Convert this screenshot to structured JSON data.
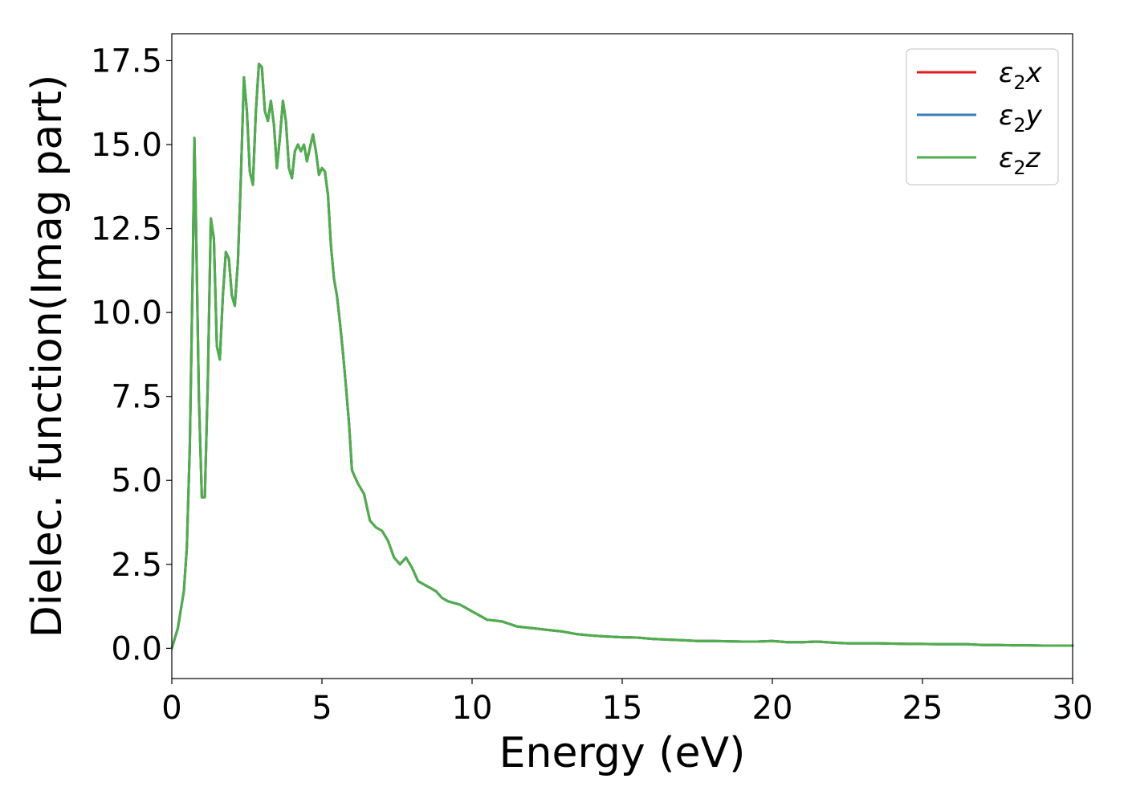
{
  "chart_data": {
    "type": "line",
    "title": "",
    "xlabel": "Energy (eV)",
    "ylabel": "Dielec. function(Imag part)",
    "xlim": [
      0,
      30
    ],
    "ylim": [
      -0.9,
      18.3
    ],
    "xticks": [
      0,
      5,
      10,
      15,
      20,
      25,
      30
    ],
    "xtick_labels": [
      "0",
      "5",
      "10",
      "15",
      "20",
      "25",
      "30"
    ],
    "yticks": [
      0,
      2.5,
      5,
      7.5,
      10,
      12.5,
      15,
      17.5
    ],
    "ytick_labels": [
      "0.0",
      "2.5",
      "5.0",
      "7.5",
      "10.0",
      "12.5",
      "15.0",
      "17.5"
    ],
    "grid": false,
    "legend_position": "top-right",
    "x": [
      0,
      0.2,
      0.4,
      0.5,
      0.6,
      0.7,
      0.75,
      0.8,
      0.9,
      1.0,
      1.1,
      1.2,
      1.3,
      1.4,
      1.5,
      1.6,
      1.7,
      1.8,
      1.9,
      2.0,
      2.1,
      2.2,
      2.3,
      2.4,
      2.5,
      2.6,
      2.7,
      2.8,
      2.9,
      3.0,
      3.1,
      3.2,
      3.3,
      3.4,
      3.5,
      3.6,
      3.7,
      3.8,
      3.9,
      4.0,
      4.1,
      4.2,
      4.3,
      4.4,
      4.5,
      4.6,
      4.7,
      4.8,
      4.9,
      5.0,
      5.1,
      5.2,
      5.3,
      5.4,
      5.5,
      5.6,
      5.7,
      5.8,
      5.9,
      6.0,
      6.2,
      6.4,
      6.6,
      6.8,
      7.0,
      7.2,
      7.4,
      7.6,
      7.8,
      8.0,
      8.2,
      8.4,
      8.6,
      8.8,
      9.0,
      9.2,
      9.4,
      9.6,
      9.8,
      10.0,
      10.2,
      10.5,
      11.0,
      11.5,
      12.0,
      12.5,
      13.0,
      13.5,
      14.0,
      14.5,
      15.0,
      15.5,
      16.0,
      16.5,
      17.0,
      17.5,
      18.0,
      18.5,
      19.0,
      19.5,
      20.0,
      20.5,
      21.0,
      21.5,
      22.0,
      22.5,
      23.0,
      23.5,
      24.0,
      24.5,
      25.0,
      25.5,
      26.0,
      26.5,
      27.0,
      27.5,
      28.0,
      28.5,
      29.0,
      29.5,
      30.0
    ],
    "series": [
      {
        "name": "ε2x",
        "color": "#e41a1c",
        "values": [
          0,
          0.6,
          1.7,
          3.0,
          6.0,
          11.5,
          15.2,
          13.0,
          7.5,
          4.5,
          4.5,
          8.0,
          12.8,
          12.2,
          9.0,
          8.6,
          10.5,
          11.8,
          11.6,
          10.5,
          10.2,
          11.5,
          14.0,
          17.0,
          16.0,
          14.2,
          13.8,
          16.0,
          17.4,
          17.3,
          16.0,
          15.7,
          16.3,
          15.6,
          14.3,
          15.2,
          16.3,
          15.7,
          14.3,
          14.0,
          14.8,
          15.0,
          14.8,
          15.0,
          14.5,
          14.9,
          15.3,
          14.8,
          14.1,
          14.3,
          14.2,
          13.5,
          12.0,
          11.0,
          10.5,
          9.7,
          8.8,
          7.8,
          6.7,
          5.3,
          4.9,
          4.6,
          3.8,
          3.6,
          3.5,
          3.2,
          2.7,
          2.5,
          2.7,
          2.4,
          2.0,
          1.9,
          1.8,
          1.7,
          1.5,
          1.4,
          1.35,
          1.3,
          1.2,
          1.1,
          1.0,
          0.85,
          0.8,
          0.65,
          0.6,
          0.55,
          0.5,
          0.42,
          0.38,
          0.35,
          0.33,
          0.32,
          0.28,
          0.26,
          0.24,
          0.22,
          0.22,
          0.21,
          0.2,
          0.2,
          0.22,
          0.18,
          0.18,
          0.2,
          0.17,
          0.15,
          0.15,
          0.15,
          0.14,
          0.13,
          0.13,
          0.12,
          0.12,
          0.12,
          0.1,
          0.1,
          0.09,
          0.09,
          0.08,
          0.08,
          0.08
        ]
      },
      {
        "name": "ε2y",
        "color": "#377eb8",
        "values": [
          0,
          0.6,
          1.7,
          3.0,
          6.0,
          11.5,
          15.2,
          13.0,
          7.5,
          4.5,
          4.5,
          8.0,
          12.8,
          12.2,
          9.0,
          8.6,
          10.5,
          11.8,
          11.6,
          10.5,
          10.2,
          11.5,
          14.0,
          17.0,
          16.0,
          14.2,
          13.8,
          16.0,
          17.4,
          17.3,
          16.0,
          15.7,
          16.3,
          15.6,
          14.3,
          15.2,
          16.3,
          15.7,
          14.3,
          14.0,
          14.8,
          15.0,
          14.8,
          15.0,
          14.5,
          14.9,
          15.3,
          14.8,
          14.1,
          14.3,
          14.2,
          13.5,
          12.0,
          11.0,
          10.5,
          9.7,
          8.8,
          7.8,
          6.7,
          5.3,
          4.9,
          4.6,
          3.8,
          3.6,
          3.5,
          3.2,
          2.7,
          2.5,
          2.7,
          2.4,
          2.0,
          1.9,
          1.8,
          1.7,
          1.5,
          1.4,
          1.35,
          1.3,
          1.2,
          1.1,
          1.0,
          0.85,
          0.8,
          0.65,
          0.6,
          0.55,
          0.5,
          0.42,
          0.38,
          0.35,
          0.33,
          0.32,
          0.28,
          0.26,
          0.24,
          0.22,
          0.22,
          0.21,
          0.2,
          0.2,
          0.22,
          0.18,
          0.18,
          0.2,
          0.17,
          0.15,
          0.15,
          0.15,
          0.14,
          0.13,
          0.13,
          0.12,
          0.12,
          0.12,
          0.1,
          0.1,
          0.09,
          0.09,
          0.08,
          0.08,
          0.08
        ]
      },
      {
        "name": "ε2z",
        "color": "#4daf4a",
        "values": [
          0,
          0.6,
          1.7,
          3.0,
          6.0,
          11.5,
          15.2,
          13.0,
          7.5,
          4.5,
          4.5,
          8.0,
          12.8,
          12.2,
          9.0,
          8.6,
          10.5,
          11.8,
          11.6,
          10.5,
          10.2,
          11.5,
          14.0,
          17.0,
          16.0,
          14.2,
          13.8,
          16.0,
          17.4,
          17.3,
          16.0,
          15.7,
          16.3,
          15.6,
          14.3,
          15.2,
          16.3,
          15.7,
          14.3,
          14.0,
          14.8,
          15.0,
          14.8,
          15.0,
          14.5,
          14.9,
          15.3,
          14.8,
          14.1,
          14.3,
          14.2,
          13.5,
          12.0,
          11.0,
          10.5,
          9.7,
          8.8,
          7.8,
          6.7,
          5.3,
          4.9,
          4.6,
          3.8,
          3.6,
          3.5,
          3.2,
          2.7,
          2.5,
          2.7,
          2.4,
          2.0,
          1.9,
          1.8,
          1.7,
          1.5,
          1.4,
          1.35,
          1.3,
          1.2,
          1.1,
          1.0,
          0.85,
          0.8,
          0.65,
          0.6,
          0.55,
          0.5,
          0.42,
          0.38,
          0.35,
          0.33,
          0.32,
          0.28,
          0.26,
          0.24,
          0.22,
          0.22,
          0.21,
          0.2,
          0.2,
          0.22,
          0.18,
          0.18,
          0.2,
          0.17,
          0.15,
          0.15,
          0.15,
          0.14,
          0.13,
          0.13,
          0.12,
          0.12,
          0.12,
          0.1,
          0.1,
          0.09,
          0.09,
          0.08,
          0.08,
          0.08
        ]
      }
    ],
    "legend": [
      {
        "base": "ε",
        "sub": "2",
        "var": "x",
        "color": "#e41a1c"
      },
      {
        "base": "ε",
        "sub": "2",
        "var": "y",
        "color": "#377eb8"
      },
      {
        "base": "ε",
        "sub": "2",
        "var": "z",
        "color": "#4daf4a"
      }
    ]
  }
}
